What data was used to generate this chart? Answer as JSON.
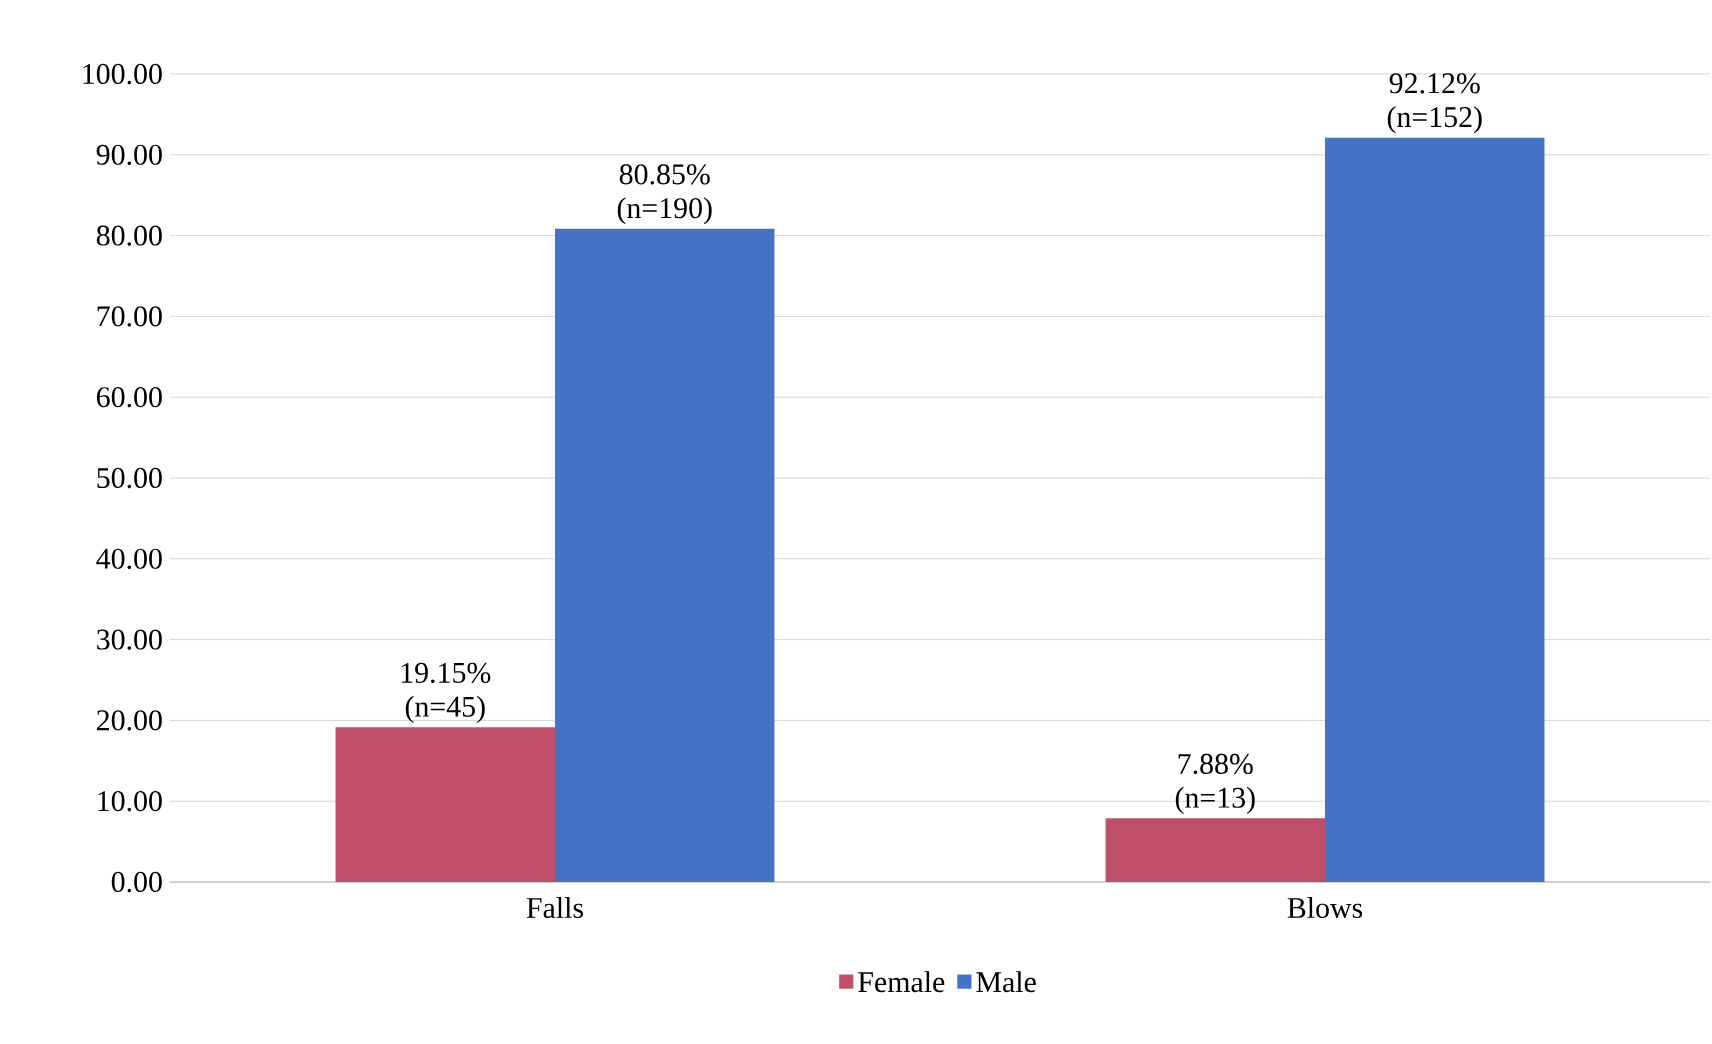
{
  "chart_data": {
    "type": "bar",
    "categories": [
      "Falls",
      "Blows"
    ],
    "series": [
      {
        "name": "Female",
        "color": "#c0506a",
        "values": [
          19.15,
          7.88
        ],
        "value_labels": [
          "19.15% (n=45)",
          "7.88% (n=13)"
        ]
      },
      {
        "name": "Male",
        "color": "#4472c4",
        "values": [
          80.85,
          92.12
        ],
        "value_labels": [
          "80.85% (n=190)",
          "92.12% (n=152)"
        ]
      }
    ],
    "ylim": [
      0,
      100
    ],
    "yticks": [
      {
        "value": 0,
        "label": "0.00"
      },
      {
        "value": 10,
        "label": "10.00"
      },
      {
        "value": 20,
        "label": "20.00"
      },
      {
        "value": 30,
        "label": "30.00"
      },
      {
        "value": 40,
        "label": "40.00"
      },
      {
        "value": 50,
        "label": "50.00"
      },
      {
        "value": 60,
        "label": "60.00"
      },
      {
        "value": 70,
        "label": "70.00"
      },
      {
        "value": 80,
        "label": "80.00"
      },
      {
        "value": 90,
        "label": "90.00"
      },
      {
        "value": 100,
        "label": "100.00"
      }
    ],
    "grid": "y",
    "legend": "bottom"
  }
}
